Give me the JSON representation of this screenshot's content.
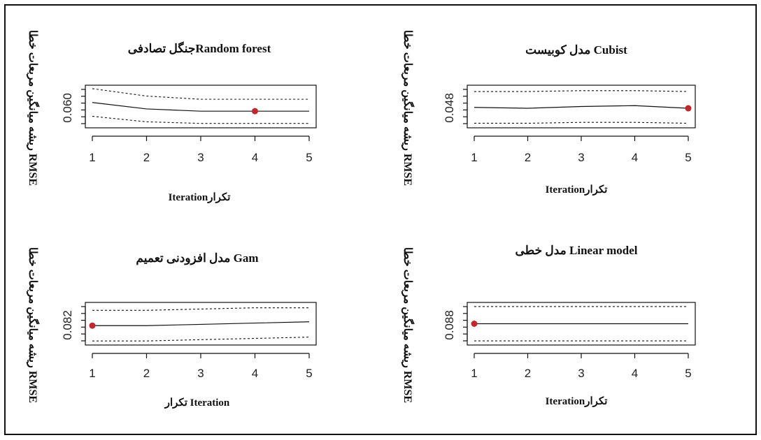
{
  "chart_data": [
    {
      "type": "line",
      "title": "جنگل تصادفیRandom forest",
      "xlabel": "Iterationتکرار",
      "ylabel": "ریشه میانگین مربعات خطا RMSE",
      "x": [
        1,
        2,
        3,
        4,
        5
      ],
      "y_tick_labels": [
        "0.060"
      ],
      "series": [
        {
          "values": [
            0.0625,
            0.0605,
            0.0598,
            0.0598,
            0.0598
          ]
        },
        {
          "values": [
            0.0668,
            0.0645,
            0.0635,
            0.0635,
            0.0635
          ]
        },
        {
          "values": [
            0.0582,
            0.0565,
            0.056,
            0.056,
            0.056
          ]
        }
      ],
      "highlight": {
        "x": 4,
        "y": 0.0598,
        "color": "#c0282d"
      },
      "ylim": [
        0.0555,
        0.067
      ],
      "xlim": [
        1,
        5
      ],
      "grid": false
    },
    {
      "type": "line",
      "title": "مدل کوبیست Cubist",
      "xlabel": "Iterationتکرار",
      "ylabel": "ریشه میانگین مربعات خطا RMSE",
      "x": [
        1,
        2,
        3,
        4,
        5
      ],
      "y_tick_labels": [
        "0.048"
      ],
      "series": [
        {
          "values": [
            0.049,
            0.0489,
            0.0491,
            0.0492,
            0.0489
          ]
        },
        {
          "values": [
            0.0508,
            0.0508,
            0.0509,
            0.0509,
            0.0508
          ]
        },
        {
          "values": [
            0.0472,
            0.0472,
            0.0473,
            0.0473,
            0.0472
          ]
        }
      ],
      "highlight": {
        "x": 5,
        "y": 0.0489,
        "color": "#c0282d"
      },
      "ylim": [
        0.047,
        0.0512
      ],
      "xlim": [
        1,
        5
      ],
      "grid": false
    },
    {
      "type": "line",
      "title": "مدل افزودنی تعمیم Gam",
      "xlabel": "تکرار Iteration",
      "ylabel": "ریشه میانگین مربعات خطا RMSE",
      "x": [
        1,
        2,
        3,
        4,
        5
      ],
      "y_tick_labels": [
        "0.082"
      ],
      "series": [
        {
          "values": [
            0.0826,
            0.0826,
            0.0827,
            0.0828,
            0.0829
          ]
        },
        {
          "values": [
            0.0838,
            0.0838,
            0.0839,
            0.084,
            0.084
          ]
        },
        {
          "values": [
            0.0814,
            0.0814,
            0.0815,
            0.0816,
            0.0817
          ]
        }
      ],
      "highlight": {
        "x": 1,
        "y": 0.0826,
        "color": "#c0282d"
      },
      "ylim": [
        0.0813,
        0.0842
      ],
      "xlim": [
        1,
        5
      ],
      "grid": false
    },
    {
      "type": "line",
      "title": "مدل خطی Linear model",
      "xlabel": "Iterationتکرار",
      "ylabel": "ریشه میانگین مربعات خطا RMSE",
      "x": [
        1,
        2,
        3,
        4,
        5
      ],
      "y_tick_labels": [
        "0.088"
      ],
      "series": [
        {
          "values": [
            0.0885,
            0.0885,
            0.0885,
            0.0885,
            0.0885
          ]
        },
        {
          "values": [
            0.0898,
            0.0898,
            0.0898,
            0.0898,
            0.0898
          ]
        },
        {
          "values": [
            0.0872,
            0.0872,
            0.0872,
            0.0872,
            0.0872
          ]
        }
      ],
      "highlight": {
        "x": 1,
        "y": 0.0885,
        "color": "#c0282d"
      },
      "ylim": [
        0.0871,
        0.0899
      ],
      "xlim": [
        1,
        5
      ],
      "grid": false
    }
  ]
}
